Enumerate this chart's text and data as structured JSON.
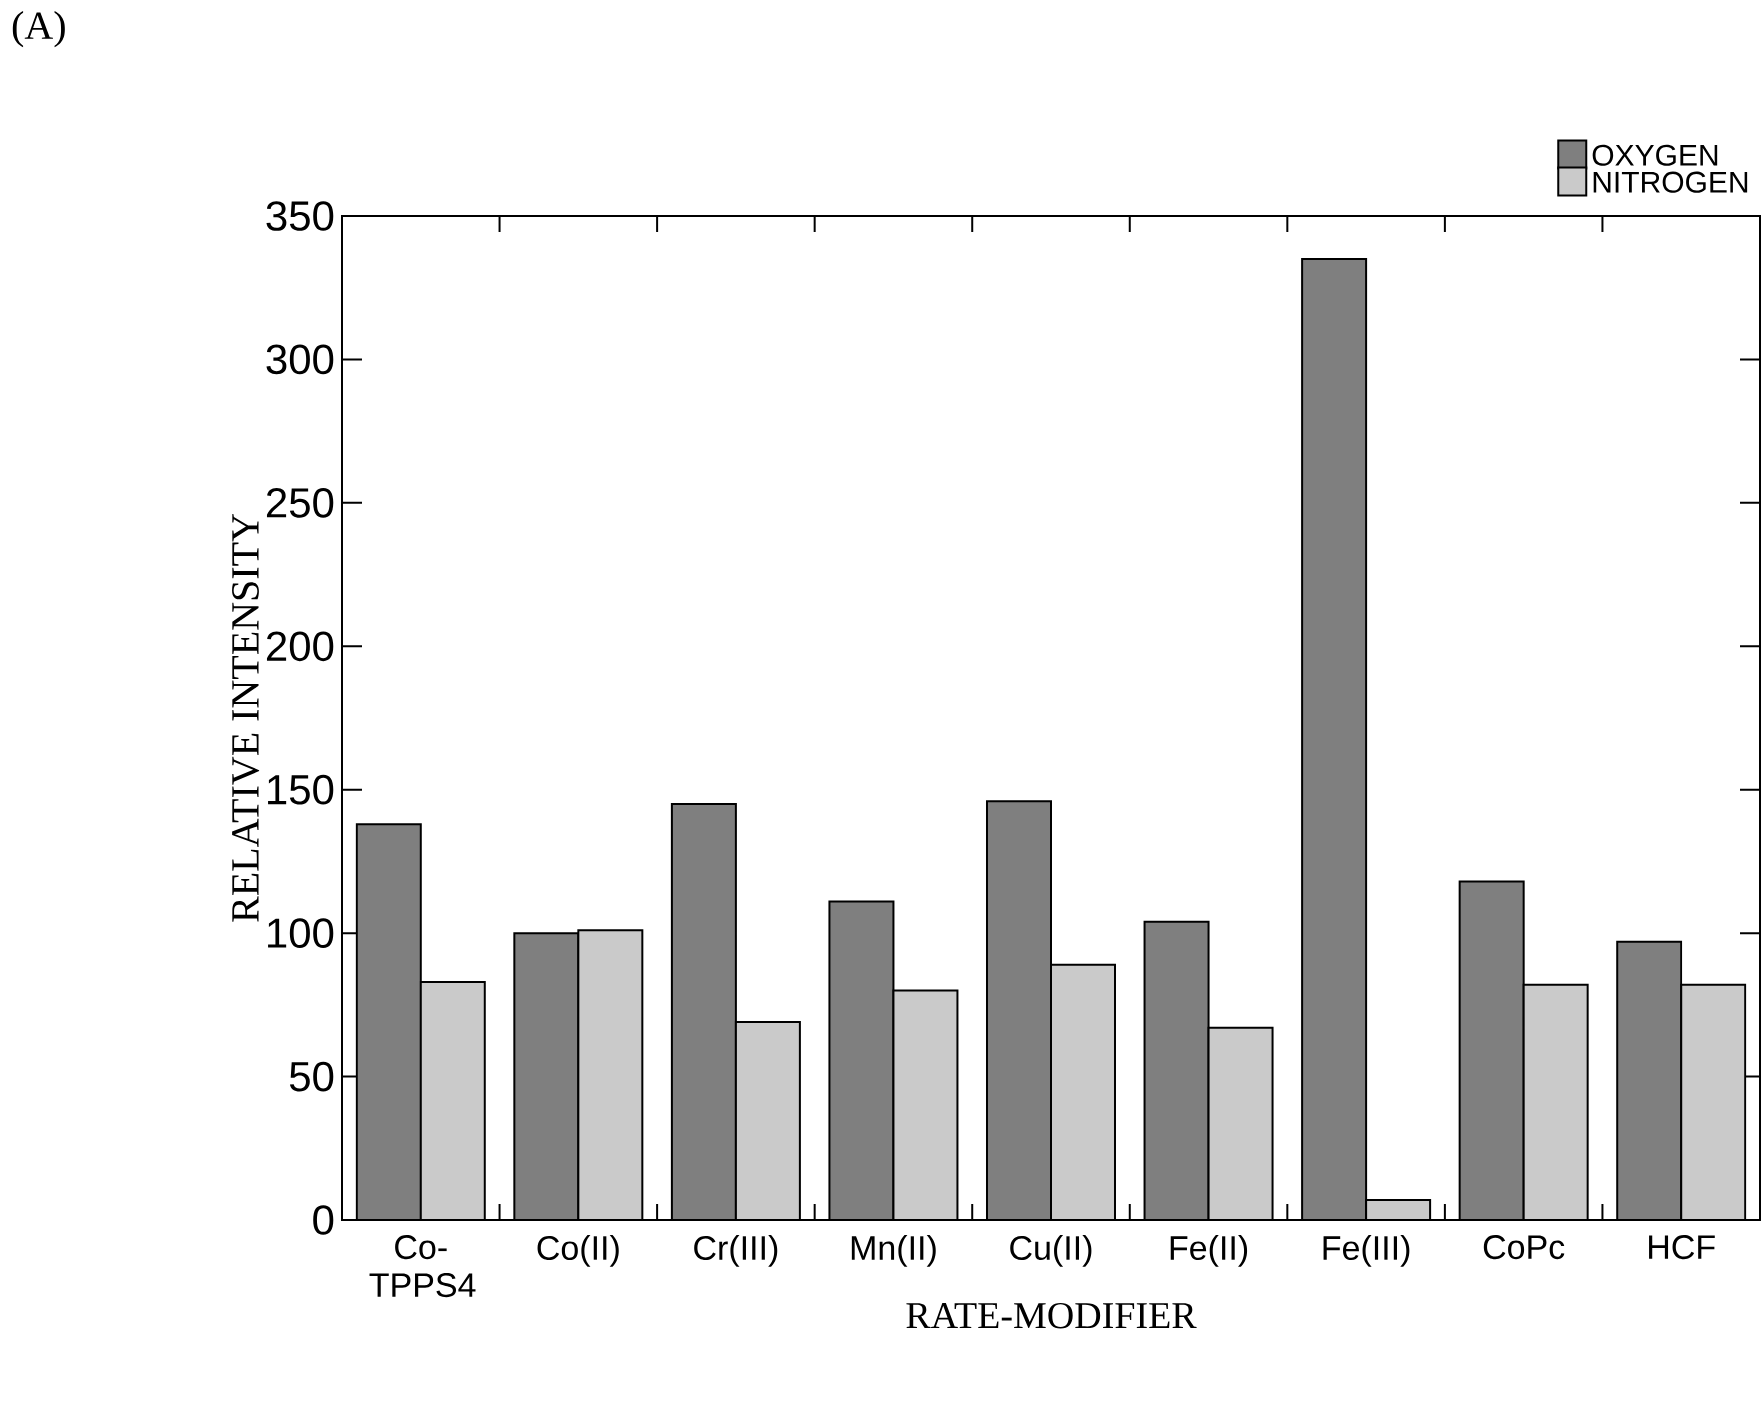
{
  "chart_data": {
    "type": "bar",
    "annotations": [
      "(A)"
    ],
    "xlabel": "RATE-MODIFIER",
    "ylabel": "RELATIVE INTENSITY",
    "categories": [
      "Co- TPPS4",
      "Co(II)",
      "Cr(III)",
      "Mn(II)",
      "Cu(II)",
      "Fe(II)",
      "Fe(III)",
      "CoPc",
      "HCF"
    ],
    "series": [
      {
        "name": "OXYGEN",
        "color": "#7f7f7f",
        "values": [
          138,
          100,
          145,
          111,
          146,
          104,
          335,
          118,
          97
        ]
      },
      {
        "name": "NITROGEN",
        "color": "#cacaca",
        "values": [
          83,
          101,
          69,
          80,
          89,
          67,
          7,
          82,
          82
        ]
      }
    ],
    "ylim": [
      0,
      350
    ],
    "yticks": [
      0,
      50,
      100,
      150,
      200,
      250,
      300,
      350
    ],
    "legend": "top right",
    "grid": false
  }
}
